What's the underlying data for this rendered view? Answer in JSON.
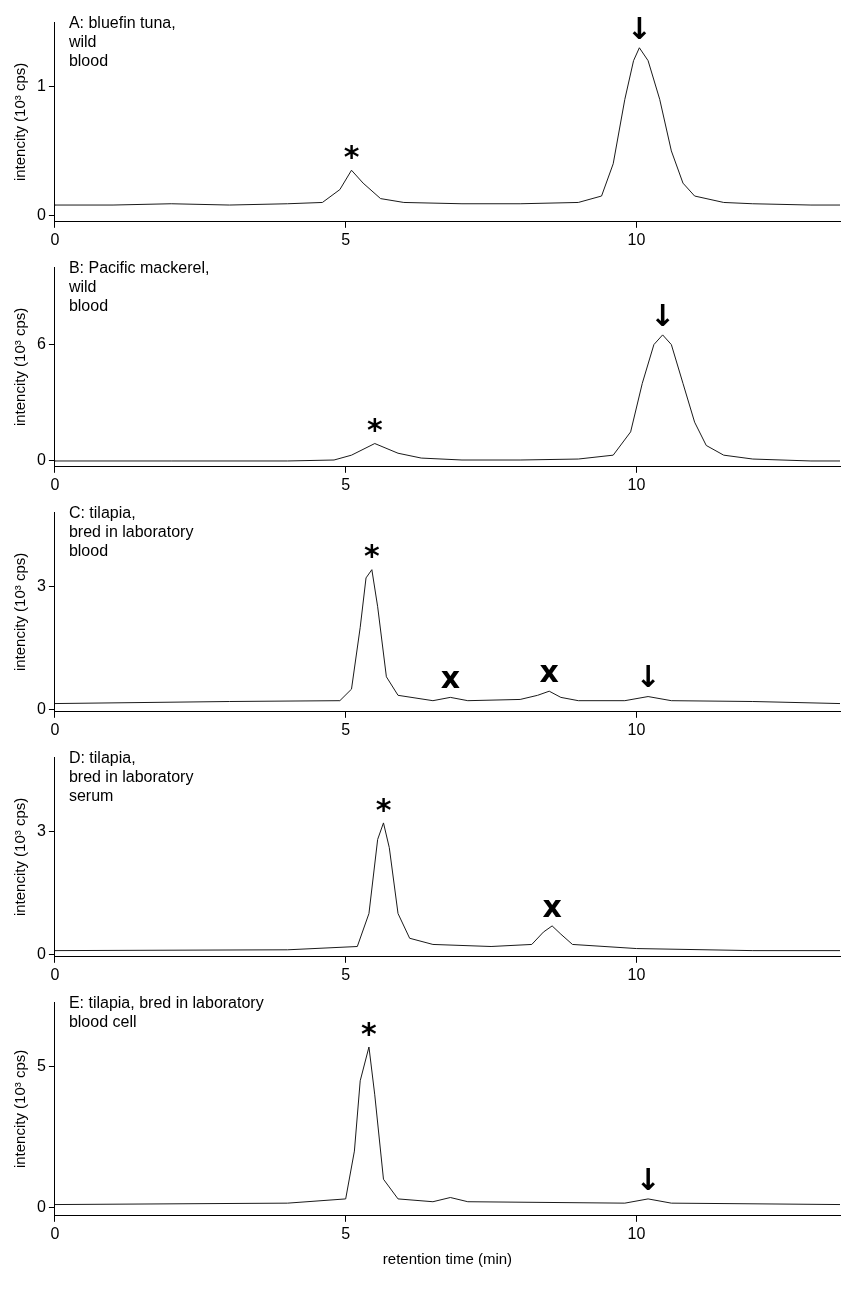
{
  "chart_data": [
    {
      "type": "line",
      "title": "A: bluefin tuna,\nwild\nblood",
      "ylabel": "intencity (10³ cps)",
      "color": "#1a1a1a",
      "marker": "none",
      "xlim": [
        0,
        13.5
      ],
      "xticks": [
        0,
        5,
        10
      ],
      "ylim": [
        -0.05,
        1.5
      ],
      "yticks": [
        0,
        1
      ],
      "x": [
        0,
        1,
        2,
        3,
        4,
        4.6,
        4.9,
        5.1,
        5.3,
        5.6,
        6,
        7,
        8,
        9,
        9.4,
        9.6,
        9.8,
        9.95,
        10.05,
        10.2,
        10.4,
        10.6,
        10.8,
        11,
        11.5,
        12,
        13,
        13.5
      ],
      "values": [
        0.08,
        0.08,
        0.09,
        0.08,
        0.09,
        0.1,
        0.2,
        0.35,
        0.25,
        0.13,
        0.1,
        0.09,
        0.09,
        0.1,
        0.15,
        0.4,
        0.9,
        1.2,
        1.3,
        1.2,
        0.9,
        0.5,
        0.25,
        0.15,
        0.1,
        0.09,
        0.08,
        0.08
      ],
      "annotations": [
        {
          "text": "*",
          "x": 5.1,
          "y": 0.35
        },
        {
          "text": "↓",
          "x": 10.05,
          "y": 1.3
        }
      ]
    },
    {
      "type": "line",
      "title": "B: Pacific mackerel,\nwild\nblood",
      "ylabel": "intencity (10³ cps)",
      "color": "#1a1a1a",
      "marker": "none",
      "xlim": [
        0,
        13.5
      ],
      "xticks": [
        0,
        5,
        10
      ],
      "ylim": [
        -0.3,
        10
      ],
      "yticks": [
        0,
        6
      ],
      "x": [
        0,
        2,
        4,
        4.8,
        5.1,
        5.5,
        5.9,
        6.3,
        7,
        8,
        9,
        9.6,
        9.9,
        10.1,
        10.3,
        10.45,
        10.6,
        10.8,
        11,
        11.2,
        11.5,
        12,
        13,
        13.5
      ],
      "values": [
        0,
        0,
        0,
        0.05,
        0.3,
        0.9,
        0.4,
        0.15,
        0.05,
        0.05,
        0.1,
        0.3,
        1.5,
        4,
        6,
        6.5,
        6,
        4,
        2,
        0.8,
        0.3,
        0.1,
        0,
        0
      ],
      "annotations": [
        {
          "text": "*",
          "x": 5.5,
          "y": 0.9
        },
        {
          "text": "↓",
          "x": 10.45,
          "y": 6.5
        }
      ]
    },
    {
      "type": "line",
      "title": "C: tilapia,\nbred in laboratory\nblood",
      "ylabel": "intencity (10³ cps)",
      "color": "#1a1a1a",
      "marker": "none",
      "xlim": [
        0,
        13.5
      ],
      "xticks": [
        0,
        5,
        10
      ],
      "ylim": [
        -0.05,
        4.8
      ],
      "yticks": [
        0,
        3
      ],
      "x": [
        0,
        3,
        4.9,
        5.1,
        5.25,
        5.35,
        5.45,
        5.55,
        5.7,
        5.9,
        6.5,
        6.8,
        7.1,
        8,
        8.3,
        8.5,
        8.7,
        9,
        9.8,
        10.2,
        10.6,
        12,
        13.5
      ],
      "values": [
        0.15,
        0.2,
        0.22,
        0.5,
        2,
        3.2,
        3.4,
        2.5,
        0.8,
        0.35,
        0.22,
        0.3,
        0.22,
        0.25,
        0.35,
        0.45,
        0.3,
        0.22,
        0.22,
        0.32,
        0.22,
        0.2,
        0.15
      ],
      "annotations": [
        {
          "text": "*",
          "x": 5.45,
          "y": 3.4
        },
        {
          "text": "x",
          "x": 6.8,
          "y": 0.3
        },
        {
          "text": "x",
          "x": 8.5,
          "y": 0.45
        },
        {
          "text": "↓",
          "x": 10.2,
          "y": 0.32
        }
      ]
    },
    {
      "type": "line",
      "title": "D: tilapia,\nbred in laboratory\nserum",
      "ylabel": "intencity (10³ cps)",
      "color": "#1a1a1a",
      "marker": "none",
      "xlim": [
        0,
        13.5
      ],
      "xticks": [
        0,
        5,
        10
      ],
      "ylim": [
        -0.05,
        4.8
      ],
      "yticks": [
        0,
        3
      ],
      "x": [
        0,
        4,
        5.2,
        5.4,
        5.55,
        5.65,
        5.75,
        5.9,
        6.1,
        6.5,
        7.5,
        8.2,
        8.4,
        8.55,
        8.7,
        8.9,
        10,
        12,
        13.5
      ],
      "values": [
        0.1,
        0.12,
        0.2,
        1,
        2.8,
        3.2,
        2.6,
        1,
        0.4,
        0.25,
        0.2,
        0.25,
        0.55,
        0.7,
        0.5,
        0.25,
        0.15,
        0.1,
        0.1
      ],
      "annotations": [
        {
          "text": "*",
          "x": 5.65,
          "y": 3.2
        },
        {
          "text": "x",
          "x": 8.55,
          "y": 0.7
        }
      ]
    },
    {
      "type": "line",
      "title": "E: tilapia, bred in laboratory\nblood cell",
      "ylabel": "intencity (10³ cps)",
      "xlabel": "retention time (min)",
      "color": "#1a1a1a",
      "marker": "none",
      "xlim": [
        0,
        13.5
      ],
      "xticks": [
        0,
        5,
        10
      ],
      "ylim": [
        -0.3,
        7.3
      ],
      "yticks": [
        0,
        5
      ],
      "x": [
        0,
        4,
        5,
        5.15,
        5.25,
        5.4,
        5.5,
        5.65,
        5.9,
        6.5,
        6.8,
        7.1,
        9.8,
        10.2,
        10.6,
        13.5
      ],
      "values": [
        0.1,
        0.15,
        0.3,
        2,
        4.5,
        5.7,
        4,
        1,
        0.3,
        0.2,
        0.35,
        0.2,
        0.15,
        0.3,
        0.15,
        0.1
      ],
      "annotations": [
        {
          "text": "*",
          "x": 5.4,
          "y": 5.7
        },
        {
          "text": "↓",
          "x": 10.2,
          "y": 0.3
        }
      ]
    }
  ]
}
